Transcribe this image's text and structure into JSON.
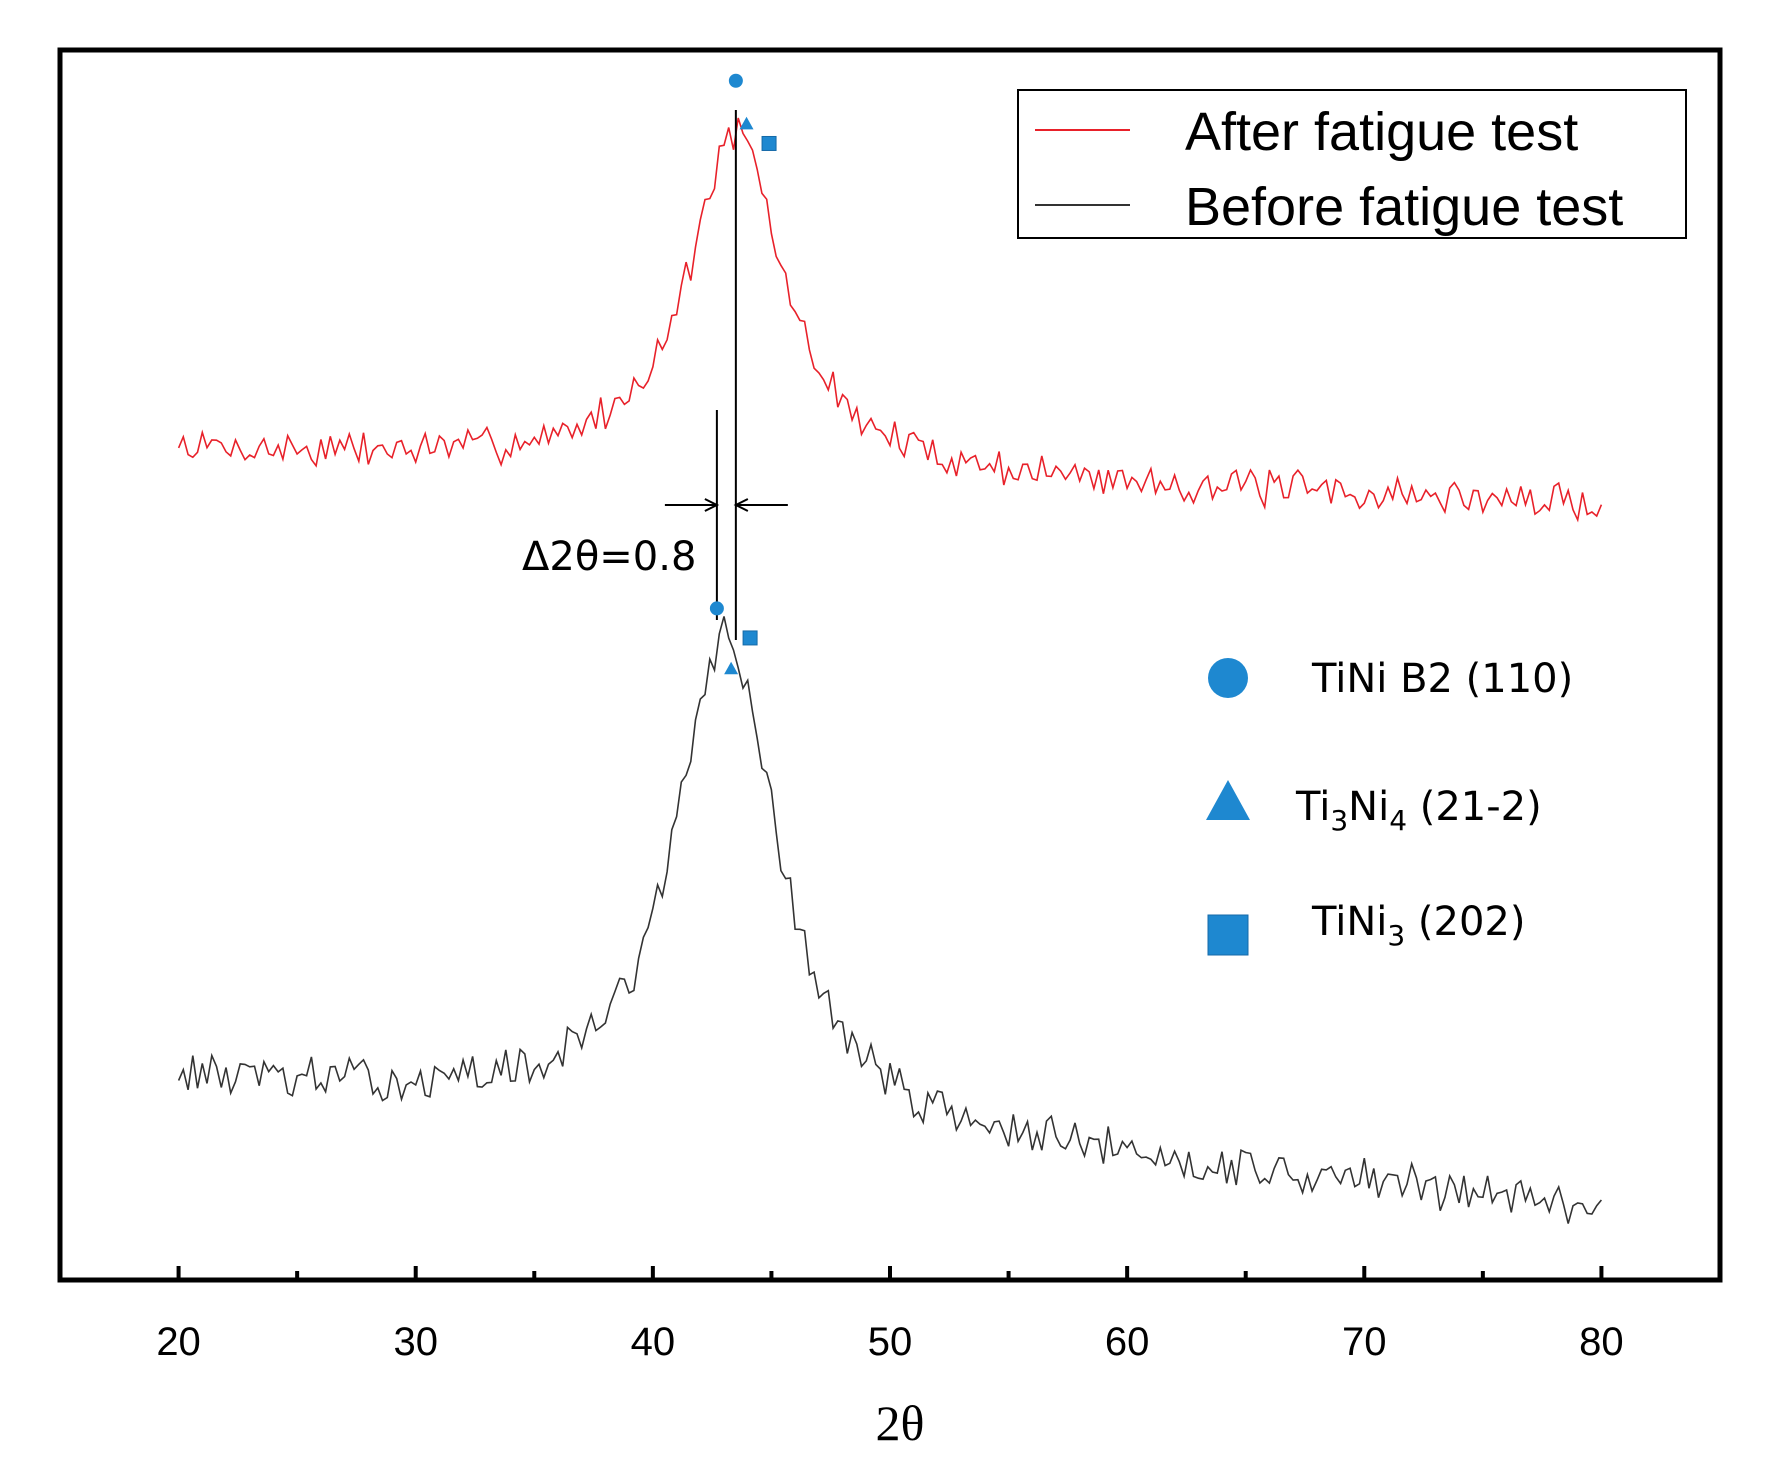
{
  "chart_data": {
    "type": "line",
    "title": "",
    "xlabel": "2θ",
    "ylabel": "",
    "xlim": [
      15,
      85
    ],
    "ylim": [
      0,
      1
    ],
    "xticks": [
      20,
      30,
      40,
      50,
      60,
      70,
      80
    ],
    "xtick_labels": [
      "20",
      "30",
      "40",
      "50",
      "60",
      "70",
      "80"
    ],
    "grid": false,
    "legend": {
      "position": "top-right",
      "entries": [
        {
          "label": "After fatigue test",
          "color": "#e8212a"
        },
        {
          "label": "Before fatigue test",
          "color": "#333333"
        }
      ]
    },
    "series": [
      {
        "name": "After fatigue test",
        "color": "#e8212a",
        "x_range": [
          20,
          80
        ],
        "points": 300,
        "baseline_left": 0.675,
        "baseline_right": 0.63,
        "peak_center": 43.5,
        "peak_height": 0.275,
        "peak_width": 2.4,
        "noise": 0.012,
        "seed": 7
      },
      {
        "name": "Before fatigue test",
        "color": "#333333",
        "x_range": [
          20,
          80
        ],
        "points": 300,
        "baseline_left": 0.165,
        "baseline_right": 0.06,
        "peak_center": 43.1,
        "peak_height": 0.4,
        "peak_width": 2.6,
        "noise": 0.014,
        "seed": 13
      }
    ],
    "peak_markers": {
      "color": "#1e88d0",
      "phases": [
        {
          "symbol": "circle",
          "label": "TiNi B2 (110)",
          "label_main": "TiNi B2 (110)"
        },
        {
          "symbol": "triangle",
          "label": "Ti3Ni4 (21-2)",
          "label_main": "Ti",
          "sub1": "3",
          "mid": "Ni",
          "sub2": "4",
          "tail": " (21-2)"
        },
        {
          "symbol": "square",
          "label": "TiNi3 (202)",
          "label_main": "TiNi",
          "sub1": "3",
          "tail": " (202)"
        }
      ],
      "after": [
        {
          "symbol": "circle",
          "x": 43.5,
          "y": 0.975
        },
        {
          "symbol": "triangle",
          "x": 43.95,
          "y": 0.94
        },
        {
          "symbol": "square",
          "x": 44.9,
          "y": 0.924
        }
      ],
      "before": [
        {
          "symbol": "circle",
          "x": 42.7,
          "y": 0.546
        },
        {
          "symbol": "triangle",
          "x": 43.3,
          "y": 0.497
        },
        {
          "symbol": "square",
          "x": 44.1,
          "y": 0.522
        }
      ]
    },
    "annotations": [
      {
        "text": "Δ2θ=0.8",
        "x_left": 42.7,
        "x_right": 43.5
      }
    ]
  }
}
